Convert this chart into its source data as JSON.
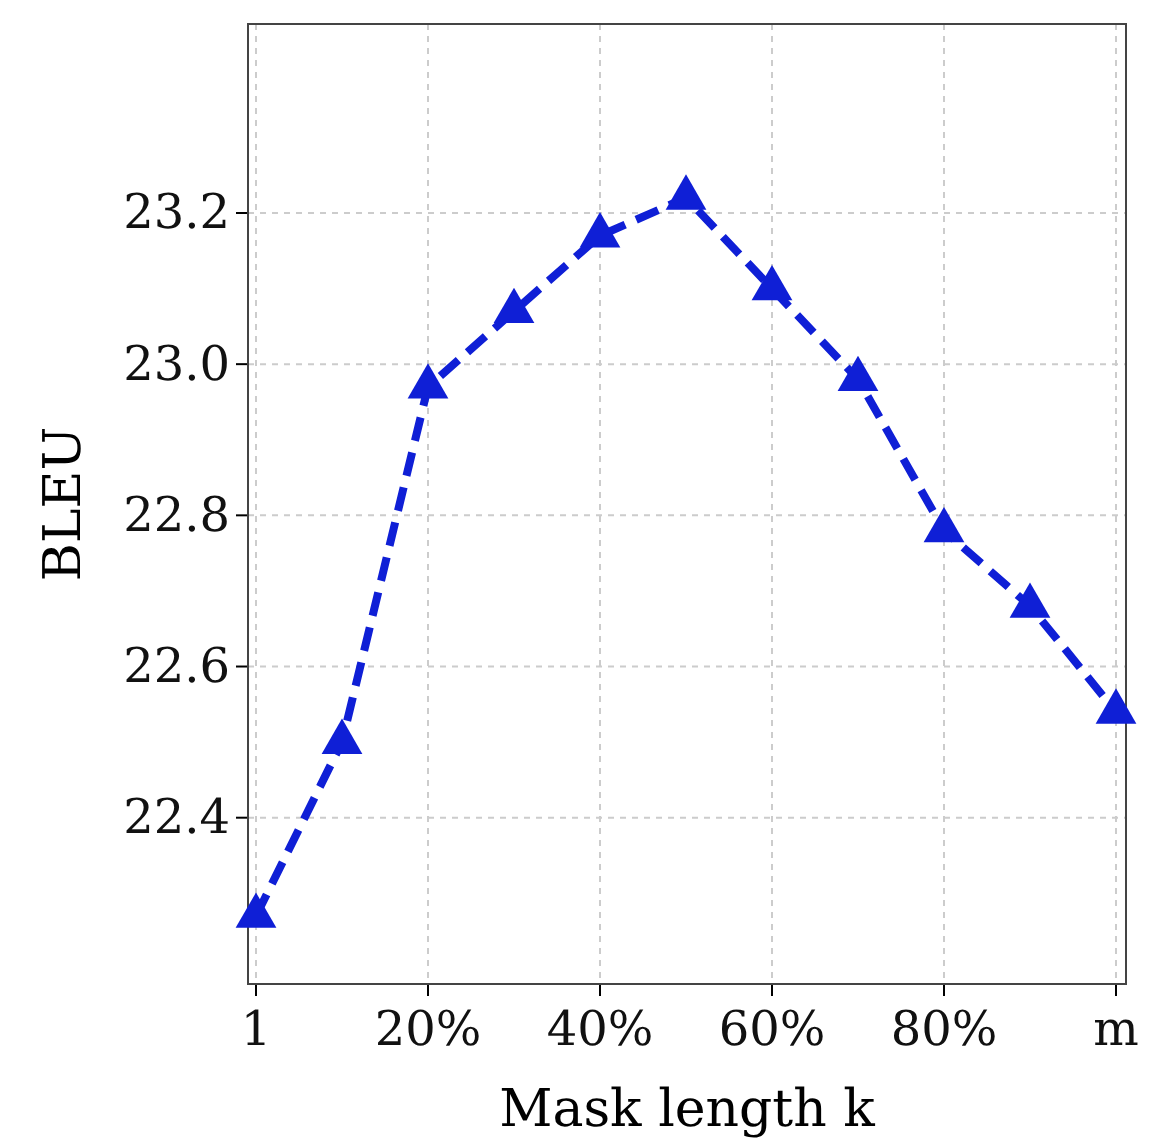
{
  "chart_data": {
    "type": "line",
    "xlabel": "Mask length k",
    "ylabel": "BLEU",
    "categories": [
      "1",
      null,
      "20%",
      null,
      "40%",
      null,
      "60%",
      null,
      "80%",
      null,
      "m"
    ],
    "series": [
      {
        "color": "#0f1fd6",
        "values": [
          22.27,
          22.5,
          22.97,
          23.07,
          23.17,
          23.22,
          23.1,
          22.98,
          22.78,
          22.68,
          22.54
        ]
      }
    ],
    "ylim": [
      22.18,
      23.45
    ],
    "yticks": [
      22.4,
      22.6,
      22.8,
      {
        "value": 23,
        "label": "23.0"
      },
      23.2
    ],
    "grid": true,
    "marker": "triangle",
    "line_style": "dashed"
  }
}
